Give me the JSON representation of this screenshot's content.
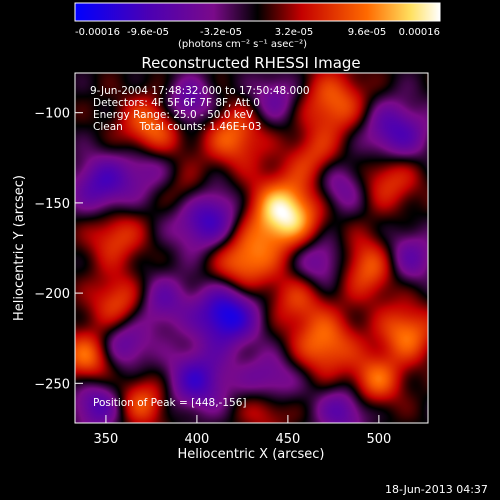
{
  "chart_data": {
    "type": "heatmap",
    "title": "Reconstructed RHESSI Image",
    "xlabel": "Heliocentric X (arcsec)",
    "ylabel": "Heliocentric Y (arcsec)",
    "xlim": [
      333,
      527
    ],
    "ylim": [
      -272,
      -78
    ],
    "x_ticks": [
      350,
      400,
      450,
      500
    ],
    "y_ticks": [
      -100,
      -150,
      -200,
      -250
    ],
    "colorbar": {
      "min": -0.00016,
      "max": 0.00016,
      "tick_labels": [
        "-0.00016",
        "-9.6e-05",
        "-3.2e-05",
        "3.2e-05",
        "9.6e-05",
        "0.00016"
      ],
      "unit_label": "(photons cm⁻² s⁻¹ asec⁻²)",
      "colors": [
        "#0000ff",
        "#4b00b4",
        "#7a0a8a",
        "#000000",
        "#c40000",
        "#ff6a00",
        "#ffe060",
        "#ffffff"
      ]
    },
    "annotations": {
      "time": "9-Jun-2004 17:48:32.000 to 17:50:48.000",
      "detectors": "Detectors: 4F 5F 6F 7F 8F, Att 0",
      "energy": "Energy Range: 25.0 - 50.0 keV",
      "clean": "Clean     Total counts: 1.46E+03",
      "peak": "Position of Peak = [448,-156]"
    },
    "blobs": [
      {
        "x": 448,
        "y": -156,
        "v": 1.0,
        "s": 14
      },
      {
        "x": 425,
        "y": -182,
        "v": 0.65,
        "s": 12
      },
      {
        "x": 375,
        "y": -108,
        "v": 0.6,
        "s": 12
      },
      {
        "x": 420,
        "y": -113,
        "v": 0.55,
        "s": 12
      },
      {
        "x": 475,
        "y": -95,
        "v": 0.55,
        "s": 13
      },
      {
        "x": 355,
        "y": -168,
        "v": 0.45,
        "s": 11
      },
      {
        "x": 505,
        "y": -135,
        "v": 0.5,
        "s": 12
      },
      {
        "x": 495,
        "y": -185,
        "v": 0.6,
        "s": 12
      },
      {
        "x": 515,
        "y": -222,
        "v": 0.6,
        "s": 11
      },
      {
        "x": 470,
        "y": -228,
        "v": 0.6,
        "s": 12
      },
      {
        "x": 340,
        "y": -235,
        "v": 0.6,
        "s": 10
      },
      {
        "x": 370,
        "y": -260,
        "v": 0.5,
        "s": 10
      },
      {
        "x": 498,
        "y": -248,
        "v": 0.55,
        "s": 10
      },
      {
        "x": 438,
        "y": -262,
        "v": 0.45,
        "s": 10
      },
      {
        "x": 357,
        "y": -205,
        "v": 0.5,
        "s": 11
      },
      {
        "x": 455,
        "y": -203,
        "v": 0.4,
        "s": 11
      },
      {
        "x": 395,
        "y": -145,
        "v": 0.35,
        "s": 10
      },
      {
        "x": 465,
        "y": -125,
        "v": 0.4,
        "s": 10
      },
      {
        "x": 416,
        "y": -212,
        "v": -0.9,
        "s": 12
      },
      {
        "x": 405,
        "y": -158,
        "v": -0.75,
        "s": 13
      },
      {
        "x": 508,
        "y": -112,
        "v": -0.65,
        "s": 13
      },
      {
        "x": 348,
        "y": -140,
        "v": -0.6,
        "s": 12
      },
      {
        "x": 400,
        "y": -248,
        "v": -0.65,
        "s": 12
      },
      {
        "x": 345,
        "y": -262,
        "v": -0.55,
        "s": 10
      },
      {
        "x": 478,
        "y": -140,
        "v": -0.45,
        "s": 11
      },
      {
        "x": 440,
        "y": -250,
        "v": -0.55,
        "s": 11
      },
      {
        "x": 380,
        "y": -205,
        "v": -0.45,
        "s": 11
      },
      {
        "x": 467,
        "y": -182,
        "v": -0.5,
        "s": 11
      },
      {
        "x": 515,
        "y": -180,
        "v": -0.5,
        "s": 11
      },
      {
        "x": 480,
        "y": -265,
        "v": -0.5,
        "s": 10
      },
      {
        "x": 395,
        "y": -95,
        "v": -0.55,
        "s": 10
      },
      {
        "x": 443,
        "y": -92,
        "v": -0.4,
        "s": 10
      },
      {
        "x": 372,
        "y": -130,
        "v": -0.35,
        "s": 10
      },
      {
        "x": 360,
        "y": -228,
        "v": -0.5,
        "s": 10
      }
    ]
  },
  "footer": {
    "timestamp": "18-Jun-2013 04:37"
  }
}
